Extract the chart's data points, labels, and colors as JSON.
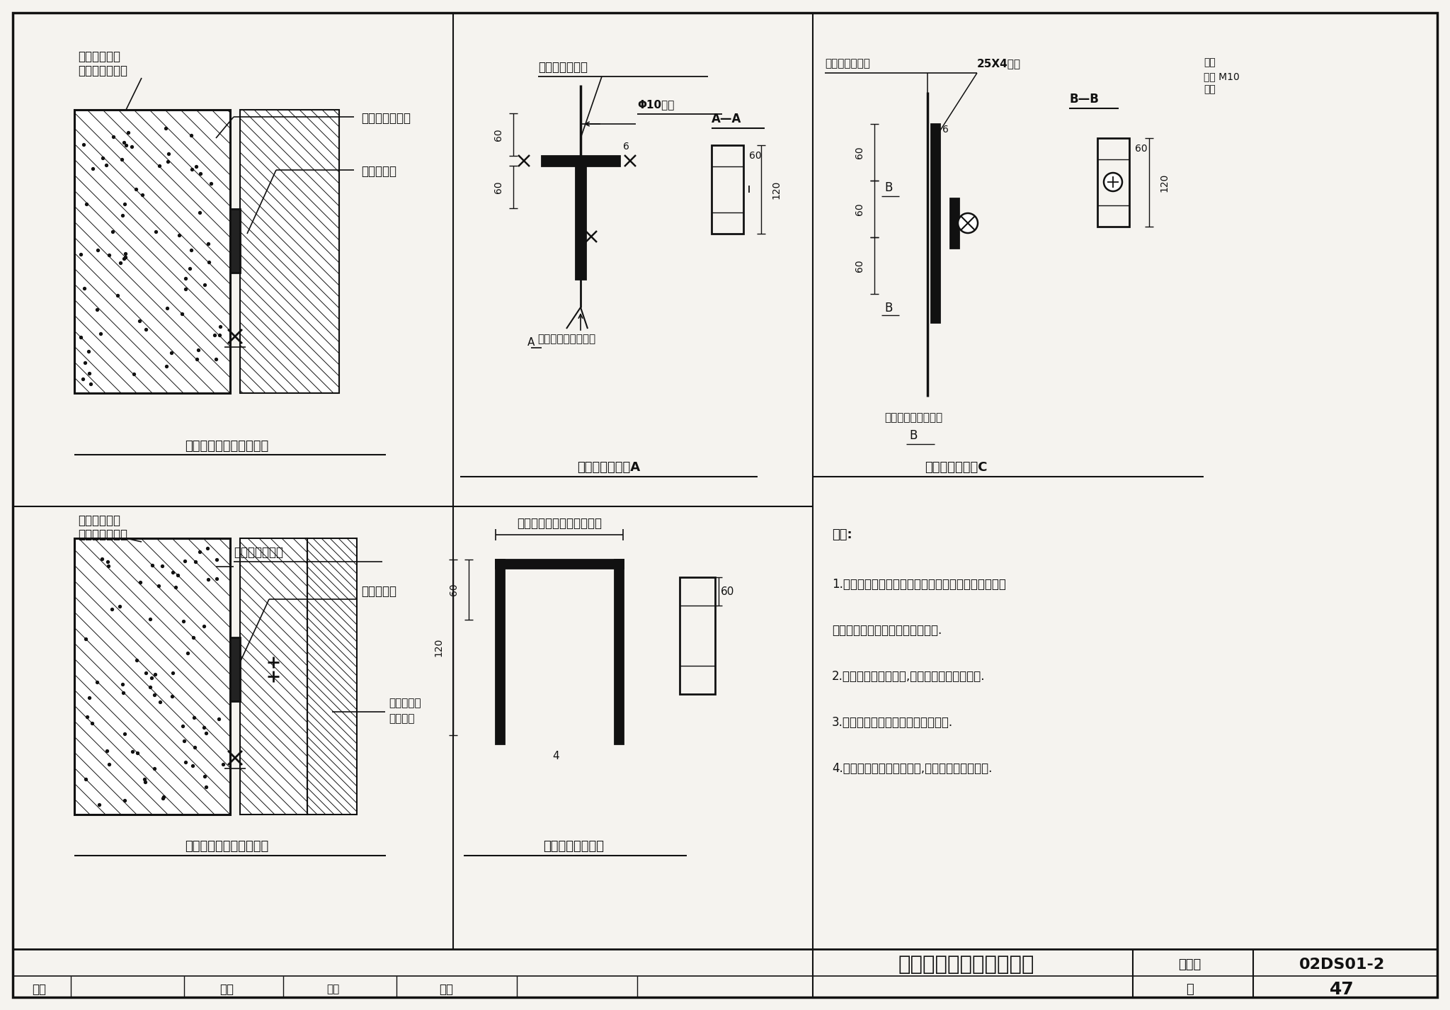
{
  "bg_color": "#f5f3ef",
  "line_color": "#111111",
  "title_text": "钢筋混凝土中预埋件做法",
  "atlas_no": "02DS01-2",
  "page_no": "47",
  "notes": [
    "附注:",
    "1.预埋连接板和引出接线板为向土建专业提出的构件，",
    "其位置和数量由具体工程设计确定.",
    "2.当为钢筋混凝土柱时,预埋连接板设于柱角处.",
    "3.引出接线板穿过砖墙时从砖缝引出.",
    "4.预埋连接板距地面的高度,由具体工程设计确定."
  ],
  "caption_top_left": "柱和墙面无饰面材料隔开",
  "caption_bot_left": "柱和墙面有饰面材料隔开",
  "caption_mid_top": "预埋连接板做法A",
  "caption_mid_bot": "引出接线板大样图",
  "caption_right_top": "预埋连接板做法C",
  "label_col_wall": "钢筋混凝土柱\n或钢筋混凝土墙",
  "label_rebar": "柱或墙内主钢筋",
  "label_embed": "预埋连接板",
  "label_phi10": "Φ10圆钢",
  "label_concrete_cover": "混凝土保护层的厚度",
  "label_25x4": "25X4扁钢",
  "label_washer": "垫圈",
  "label_nut": "螺母 M10",
  "label_bolt": "螺栓",
  "label_bb": "B—B",
  "label_aa": "A—A",
  "label_brick": "砖墙或其他建筑材料的厚度",
  "label_lead_plate": "引出接线板",
  "label_see_detail": "见大样图"
}
